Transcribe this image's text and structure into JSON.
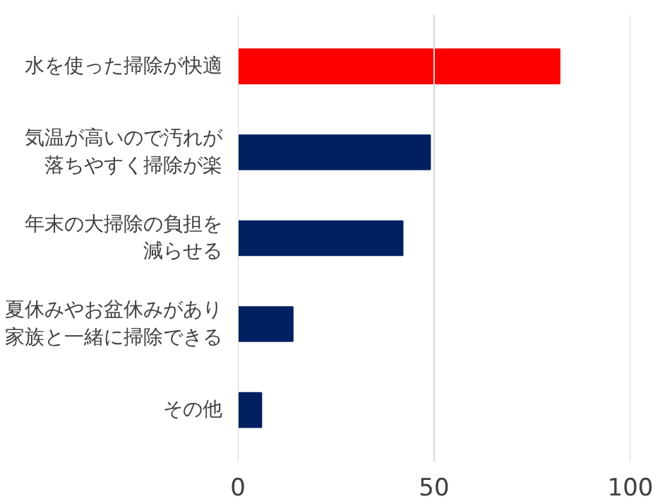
{
  "chart_data": {
    "type": "bar",
    "orientation": "horizontal",
    "categories": [
      "水を使った掃除が快適",
      "気温が高いので汚れが落ちやすく掃除が楽",
      "年末の大掃除の負担を減らせる",
      "夏休みやお盆休みがあり家族と一緒に掃除できる",
      "その他"
    ],
    "values": [
      82,
      49,
      42,
      14,
      6
    ],
    "colors": [
      "#ff0000",
      "#002060",
      "#002060",
      "#002060",
      "#002060"
    ],
    "xlim": [
      0,
      100
    ],
    "xticks": [
      0,
      50,
      100
    ],
    "grid": "x"
  }
}
